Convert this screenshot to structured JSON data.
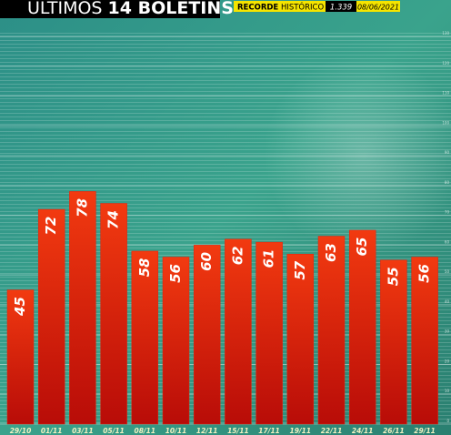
{
  "chart_data": {
    "type": "bar",
    "title": {
      "light": "ÚLTIMOS",
      "bold": "14 BOLETINS"
    },
    "record": {
      "label_bold": "RECORDE",
      "label": "HISTÓRICO",
      "value": "1.339",
      "date": "08/06/2021"
    },
    "categories": [
      "29/10",
      "01/11",
      "03/11",
      "05/11",
      "08/11",
      "10/11",
      "12/11",
      "15/11",
      "17/11",
      "19/11",
      "22/11",
      "24/11",
      "26/11",
      "29/11"
    ],
    "values": [
      45,
      72,
      78,
      74,
      58,
      56,
      60,
      62,
      61,
      57,
      63,
      65,
      55,
      56
    ],
    "color": "#e8200c",
    "ylim": [
      0,
      130
    ],
    "yticks": [
      0,
      10,
      20,
      30,
      40,
      50,
      60,
      70,
      80,
      90,
      100,
      110,
      120,
      130
    ],
    "grid": true
  }
}
